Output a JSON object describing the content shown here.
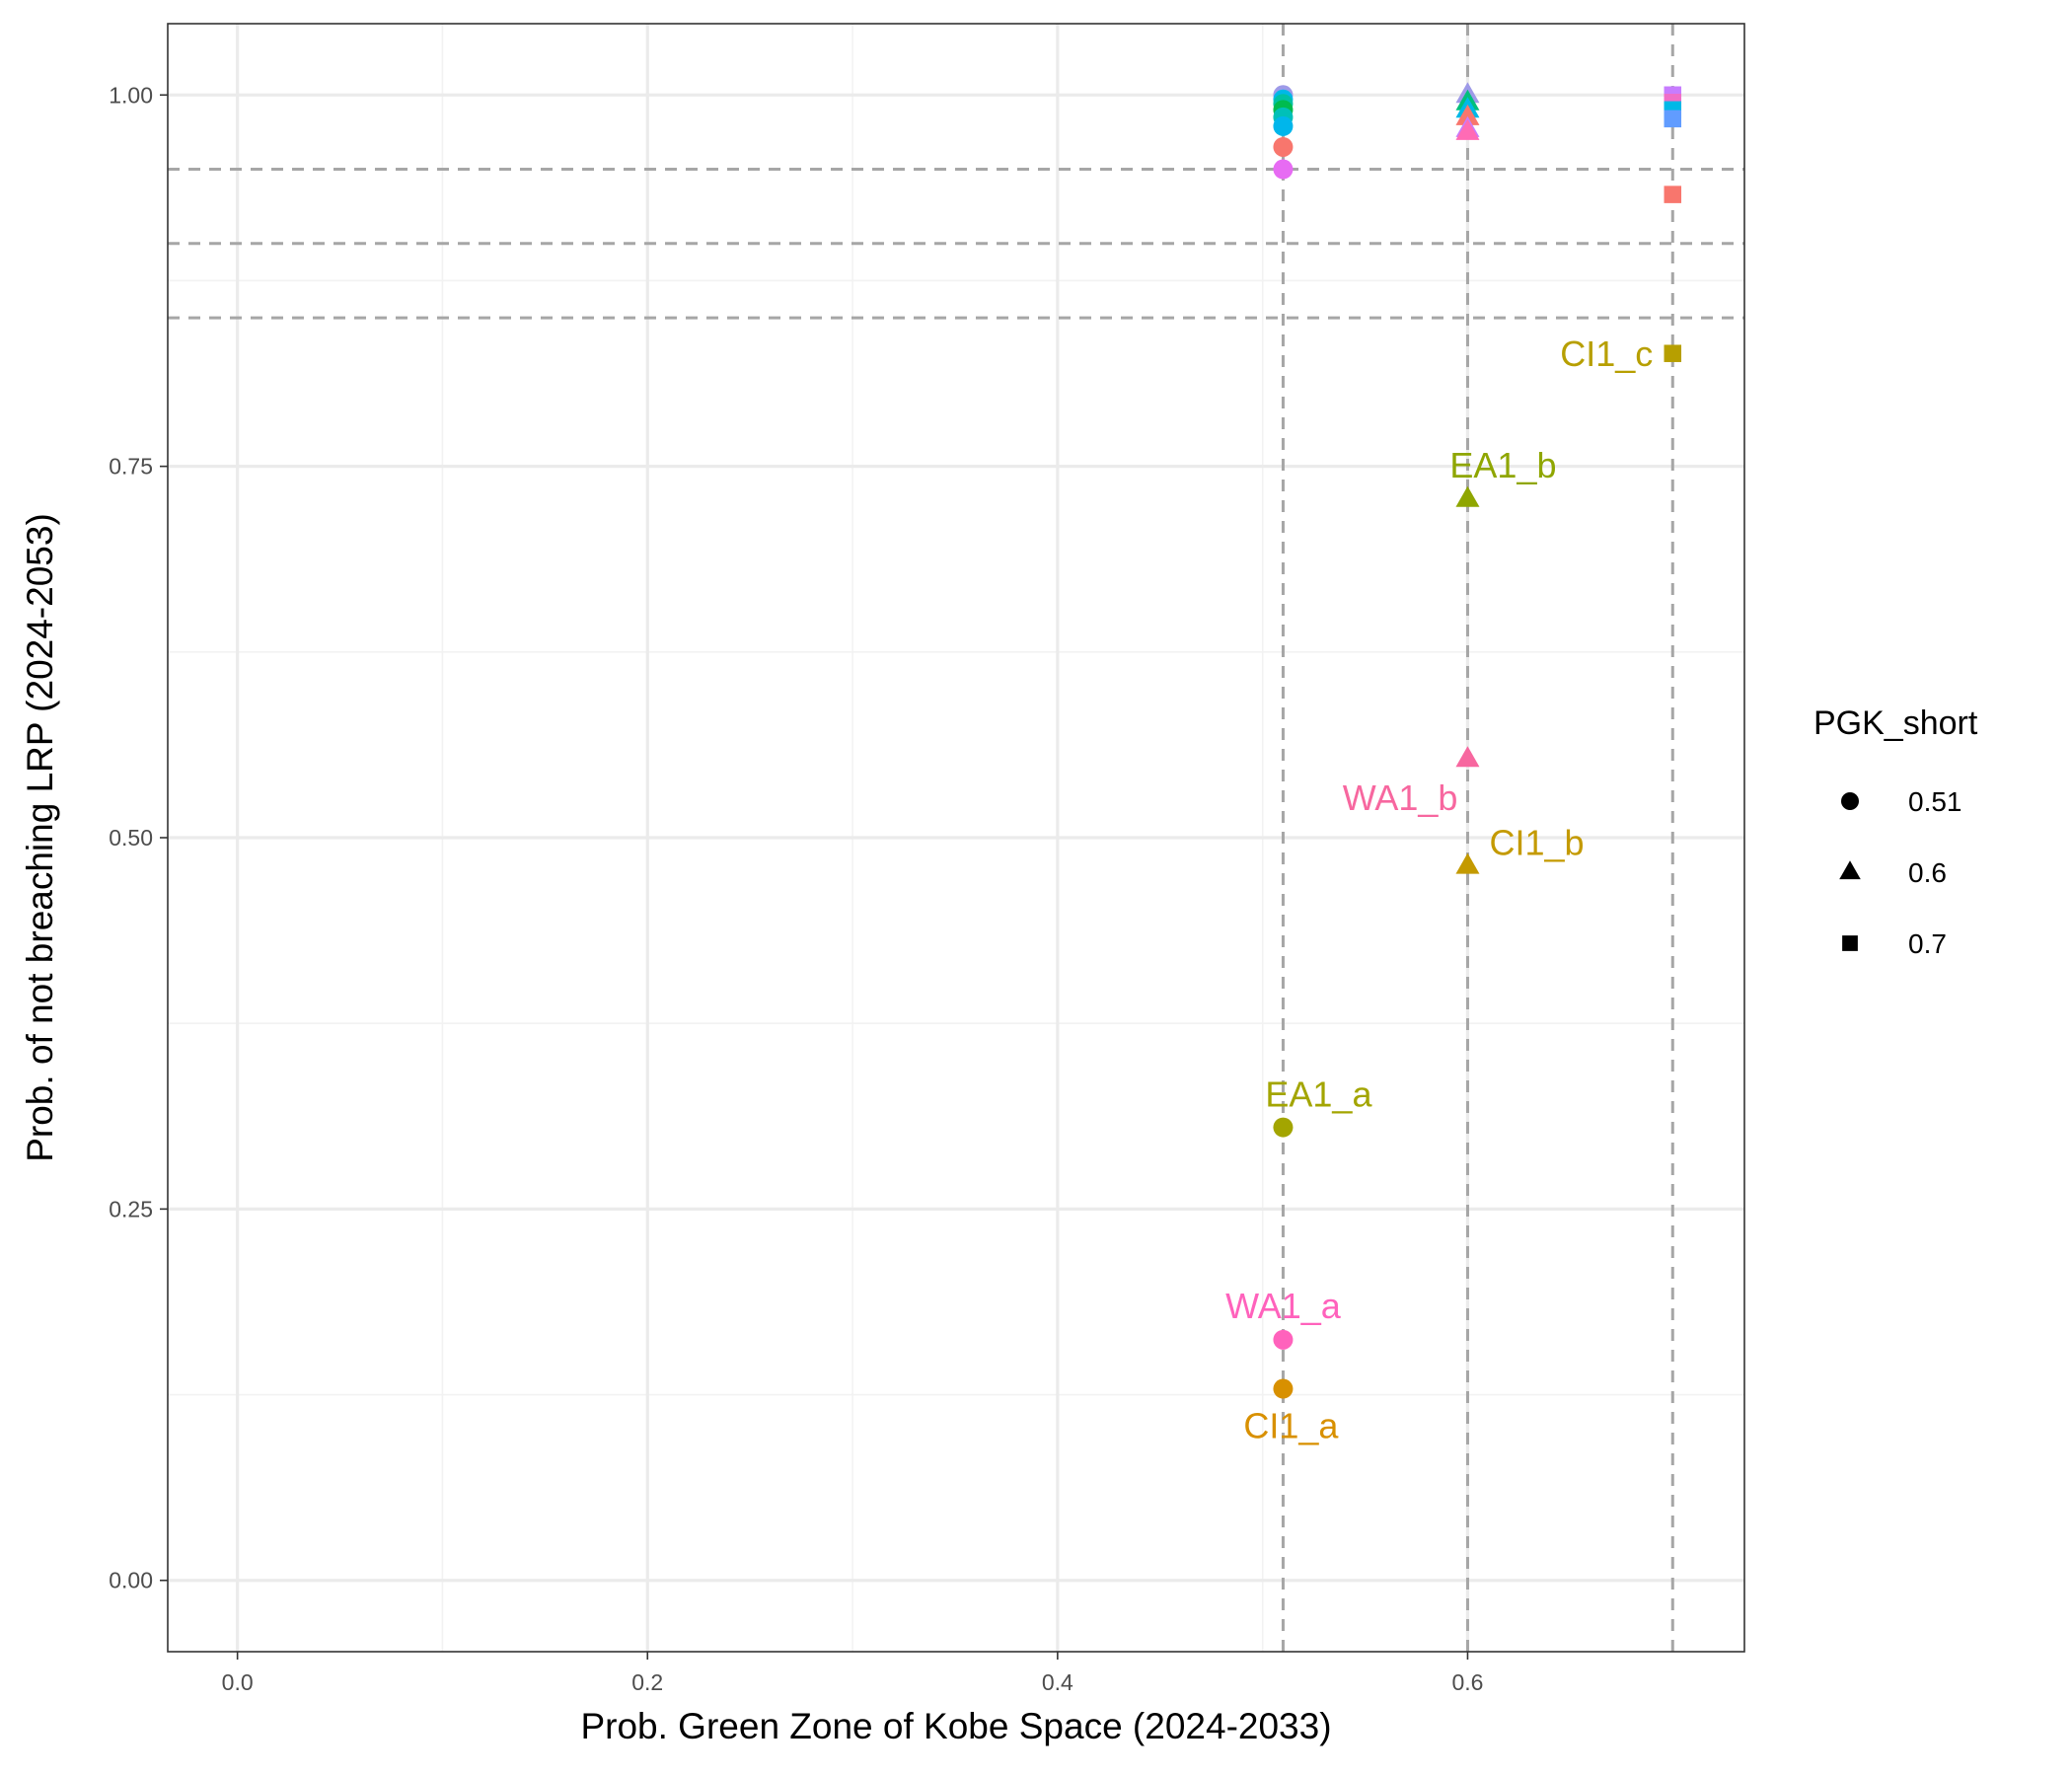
{
  "chart_data": {
    "type": "scatter",
    "xlabel": "Prob. Green Zone of Kobe Space (2024-2033)",
    "ylabel": "Prob. of not breaching LRP (2024-2053)",
    "xlim": [
      -0.034,
      0.735
    ],
    "ylim": [
      -0.048,
      1.048
    ],
    "x_ticks": [
      "0.0",
      "0.2",
      "0.4",
      "0.6"
    ],
    "x_tick_values": [
      0,
      0.2,
      0.4,
      0.6
    ],
    "y_ticks": [
      "0.00",
      "0.25",
      "0.50",
      "0.75",
      "1.00"
    ],
    "y_tick_values": [
      0,
      0.25,
      0.5,
      0.75,
      1.0
    ],
    "grid": true,
    "reference_lines": {
      "vertical": [
        0.51,
        0.6,
        0.7
      ],
      "horizontal": [
        0.95,
        0.9,
        0.85
      ],
      "style": "dashed",
      "color": "#a6a6a6"
    },
    "legend": {
      "title": "PGK_short",
      "position": "right",
      "entries": [
        {
          "label": "0.51",
          "shape": "circle"
        },
        {
          "label": "0.6",
          "shape": "triangle"
        },
        {
          "label": "0.7",
          "shape": "square"
        }
      ]
    },
    "points": [
      {
        "x": 0.51,
        "y": 1.0,
        "shape": "circle",
        "color": "#9e9ae8"
      },
      {
        "x": 0.51,
        "y": 0.997,
        "shape": "circle",
        "color": "#00b8e7"
      },
      {
        "x": 0.51,
        "y": 0.994,
        "shape": "circle",
        "color": "#00c1a3"
      },
      {
        "x": 0.51,
        "y": 0.99,
        "shape": "circle",
        "color": "#00bb4e"
      },
      {
        "x": 0.51,
        "y": 0.985,
        "shape": "circle",
        "color": "#00c0b8"
      },
      {
        "x": 0.51,
        "y": 0.979,
        "shape": "circle",
        "color": "#00b6eb"
      },
      {
        "x": 0.51,
        "y": 0.965,
        "shape": "circle",
        "color": "#f8766d"
      },
      {
        "x": 0.51,
        "y": 0.95,
        "shape": "circle",
        "color": "#e76bf3"
      },
      {
        "x": 0.51,
        "y": 0.305,
        "shape": "circle",
        "color": "#a3a500",
        "label": "EA1_a"
      },
      {
        "x": 0.51,
        "y": 0.162,
        "shape": "circle",
        "color": "#ff62bc",
        "label": "WA1_a"
      },
      {
        "x": 0.51,
        "y": 0.129,
        "shape": "circle",
        "color": "#d89000",
        "label": "CI1_a"
      },
      {
        "x": 0.6,
        "y": 1.0,
        "shape": "triangle",
        "color": "#9e9ae8"
      },
      {
        "x": 0.6,
        "y": 0.995,
        "shape": "triangle",
        "color": "#00bf7d"
      },
      {
        "x": 0.6,
        "y": 0.99,
        "shape": "triangle",
        "color": "#00b8e7"
      },
      {
        "x": 0.6,
        "y": 0.985,
        "shape": "triangle",
        "color": "#f8766d"
      },
      {
        "x": 0.6,
        "y": 0.977,
        "shape": "triangle",
        "color": "#c77cff"
      },
      {
        "x": 0.6,
        "y": 0.975,
        "shape": "triangle",
        "color": "#ff6bb5"
      },
      {
        "x": 0.6,
        "y": 0.728,
        "shape": "triangle",
        "color": "#8fa600",
        "label": "EA1_b"
      },
      {
        "x": 0.6,
        "y": 0.553,
        "shape": "triangle",
        "color": "#f7679f",
        "label": "WA1_b"
      },
      {
        "x": 0.6,
        "y": 0.481,
        "shape": "triangle",
        "color": "#c49a00",
        "label": "CI1_b"
      },
      {
        "x": 0.7,
        "y": 1.0,
        "shape": "square",
        "color": "#c77cff"
      },
      {
        "x": 0.7,
        "y": 0.995,
        "shape": "square",
        "color": "#f06ec7"
      },
      {
        "x": 0.7,
        "y": 0.99,
        "shape": "square",
        "color": "#00b8e7"
      },
      {
        "x": 0.7,
        "y": 0.984,
        "shape": "square",
        "color": "#619cff"
      },
      {
        "x": 0.7,
        "y": 0.933,
        "shape": "square",
        "color": "#f8766d"
      },
      {
        "x": 0.7,
        "y": 0.826,
        "shape": "square",
        "color": "#b79f00",
        "label": "CI1_c"
      }
    ]
  }
}
